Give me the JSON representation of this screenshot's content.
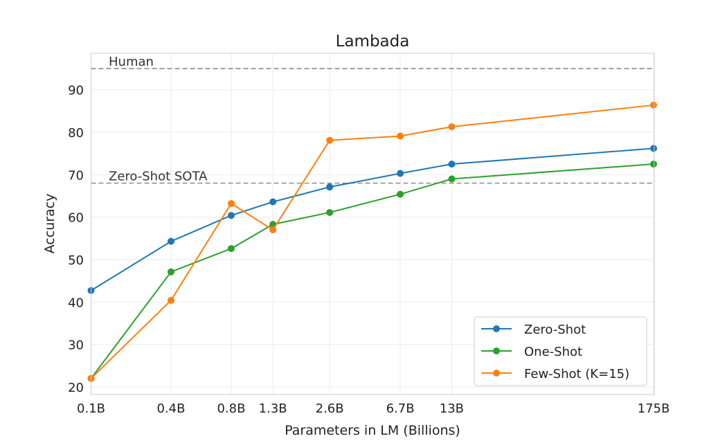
{
  "chart_data": {
    "type": "line",
    "title": "Lambada",
    "xlabel": "Parameters in LM (Billions)",
    "ylabel": "Accuracy",
    "x_scale": "log",
    "x": [
      0.125,
      0.35,
      0.76,
      1.3,
      2.7,
      6.7,
      13,
      175
    ],
    "x_tick_labels": [
      "0.1B",
      "0.4B",
      "0.8B",
      "1.3B",
      "2.6B",
      "6.7B",
      "13B",
      "175B"
    ],
    "y_ticks": [
      20,
      30,
      40,
      50,
      60,
      70,
      80,
      90
    ],
    "ylim": [
      18.2,
      98.6
    ],
    "grid": true,
    "legend_position": "bottom-right",
    "series": [
      {
        "name": "Zero-Shot",
        "color": "#1f77b4",
        "values": [
          42.7,
          54.3,
          60.4,
          63.6,
          67.1,
          70.3,
          72.5,
          76.2
        ]
      },
      {
        "name": "One-Shot",
        "color": "#2ca02c",
        "values": [
          22.0,
          47.1,
          52.6,
          58.3,
          61.1,
          65.4,
          69.0,
          72.5
        ]
      },
      {
        "name": "Few-Shot (K=15)",
        "color": "#ff7f0e",
        "values": [
          22.0,
          40.4,
          63.2,
          57.0,
          78.1,
          79.1,
          81.3,
          86.4
        ]
      }
    ],
    "reference_lines": [
      {
        "label": "Human",
        "y": 95.0,
        "color": "#999999"
      },
      {
        "label": "Zero-Shot SOTA",
        "y": 68.0,
        "color": "#999999"
      }
    ]
  }
}
